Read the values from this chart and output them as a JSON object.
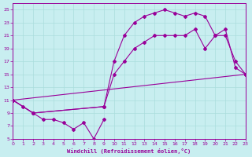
{
  "xlabel": "Windchill (Refroidissement éolien,°C)",
  "bg_color": "#c8eef0",
  "line_color": "#990099",
  "grid_color": "#aadddd",
  "xlim": [
    0,
    23
  ],
  "ylim": [
    5,
    26
  ],
  "xticks": [
    0,
    1,
    2,
    3,
    4,
    5,
    6,
    7,
    8,
    9,
    10,
    11,
    12,
    13,
    14,
    15,
    16,
    17,
    18,
    19,
    20,
    21,
    22,
    23
  ],
  "yticks": [
    5,
    7,
    9,
    11,
    13,
    15,
    17,
    19,
    21,
    23,
    25
  ],
  "line1_x": [
    0,
    1,
    2,
    3,
    4,
    5,
    6,
    7,
    8,
    9
  ],
  "line1_y": [
    11,
    10,
    9,
    8,
    8,
    7.5,
    6.5,
    7.5,
    5,
    8
  ],
  "line2_x": [
    0,
    2,
    9,
    10,
    11,
    12,
    13,
    14,
    15,
    16,
    17,
    18,
    19,
    20,
    21,
    22,
    23
  ],
  "line2_y": [
    11,
    9,
    10,
    17,
    21,
    23,
    24,
    24.5,
    25,
    24.5,
    24,
    24.5,
    24,
    21,
    22,
    16,
    15
  ],
  "line3_x": [
    0,
    2,
    9,
    10,
    11,
    12,
    13,
    14,
    15,
    16,
    17,
    18,
    19,
    20,
    21,
    22,
    23
  ],
  "line3_y": [
    11,
    9,
    10,
    15,
    17,
    19,
    20,
    21,
    21,
    21,
    21,
    22,
    19,
    21,
    21,
    17,
    15
  ],
  "line4_x": [
    0,
    23
  ],
  "line4_y": [
    11,
    15
  ]
}
